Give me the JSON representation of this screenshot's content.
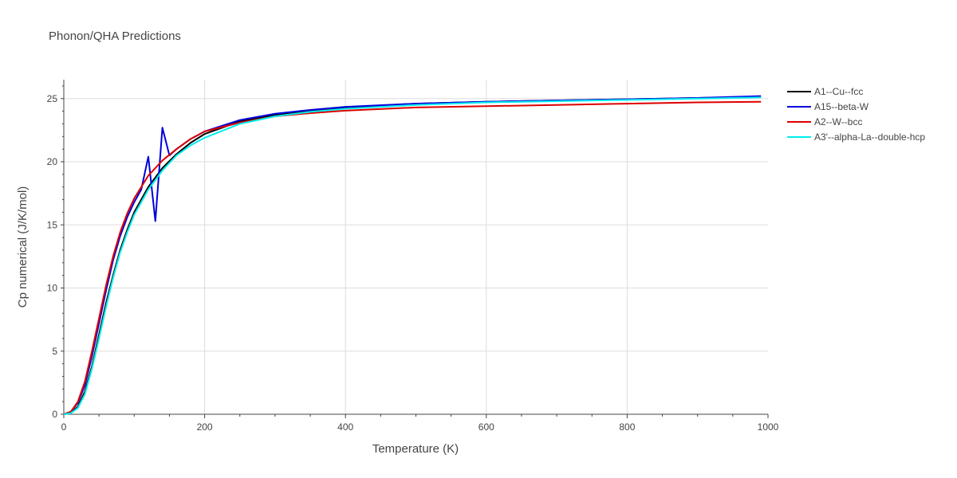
{
  "chart_data": {
    "type": "line",
    "title": "Phonon/QHA Predictions",
    "xlabel": "Temperature (K)",
    "ylabel": "Cp numerical (J/K/mol)",
    "xlim": [
      0,
      1000
    ],
    "ylim": [
      0,
      26.5
    ],
    "xticks": [
      0,
      200,
      400,
      600,
      800,
      1000
    ],
    "xtick_labels": [
      "0",
      "200",
      "400",
      "600",
      "800",
      "1000"
    ],
    "yticks": [
      0,
      5,
      10,
      15,
      20,
      25
    ],
    "ytick_labels": [
      "0",
      "5",
      "10",
      "15",
      "20",
      "25"
    ],
    "grid": true,
    "legend_position": "right",
    "series": [
      {
        "name": "A1--Cu--fcc",
        "color": "#000000",
        "x": [
          0,
          10,
          20,
          30,
          40,
          50,
          60,
          70,
          80,
          90,
          100,
          120,
          140,
          160,
          180,
          200,
          250,
          300,
          350,
          400,
          500,
          600,
          700,
          800,
          900,
          990
        ],
        "y": [
          0,
          0.1,
          0.6,
          1.8,
          3.8,
          6.3,
          8.8,
          11.0,
          13.0,
          14.6,
          16.0,
          18.0,
          19.5,
          20.6,
          21.5,
          22.2,
          23.2,
          23.7,
          24.0,
          24.3,
          24.6,
          24.75,
          24.85,
          24.95,
          25.05,
          25.15
        ]
      },
      {
        "name": "A15--beta-W",
        "color": "#0000dd",
        "x": [
          0,
          10,
          20,
          30,
          40,
          50,
          60,
          70,
          80,
          90,
          100,
          110,
          120,
          130,
          140,
          150,
          160,
          180,
          200,
          250,
          300,
          350,
          400,
          500,
          600,
          700,
          800,
          900,
          990
        ],
        "y": [
          0,
          0.2,
          0.9,
          2.3,
          4.6,
          7.2,
          9.8,
          12.2,
          14.1,
          15.6,
          16.8,
          17.8,
          20.4,
          15.3,
          22.7,
          20.5,
          21.0,
          21.8,
          22.4,
          23.3,
          23.8,
          24.1,
          24.35,
          24.6,
          24.75,
          24.85,
          24.95,
          25.05,
          25.2
        ]
      },
      {
        "name": "A2--W--bcc",
        "color": "#dd0000",
        "x": [
          0,
          10,
          20,
          30,
          40,
          50,
          60,
          70,
          80,
          90,
          100,
          120,
          140,
          160,
          180,
          200,
          250,
          300,
          350,
          400,
          500,
          600,
          700,
          800,
          900,
          990
        ],
        "y": [
          0,
          0.2,
          1.0,
          2.6,
          5.0,
          7.6,
          10.2,
          12.5,
          14.4,
          15.9,
          17.1,
          18.9,
          20.1,
          21.0,
          21.8,
          22.4,
          23.1,
          23.6,
          23.85,
          24.05,
          24.3,
          24.4,
          24.5,
          24.6,
          24.7,
          24.75
        ]
      },
      {
        "name": "A3'--alpha-La--double-hcp",
        "color": "#00eeee",
        "x": [
          0,
          10,
          20,
          30,
          40,
          50,
          60,
          70,
          80,
          90,
          100,
          120,
          140,
          160,
          180,
          200,
          250,
          300,
          350,
          400,
          500,
          600,
          700,
          800,
          900,
          990
        ],
        "y": [
          0,
          0.08,
          0.5,
          1.6,
          3.6,
          6.0,
          8.5,
          10.8,
          12.8,
          14.4,
          15.8,
          17.8,
          19.3,
          20.5,
          21.3,
          21.9,
          23.0,
          23.6,
          23.95,
          24.2,
          24.5,
          24.7,
          24.8,
          24.9,
          25.0,
          25.1
        ]
      }
    ]
  }
}
